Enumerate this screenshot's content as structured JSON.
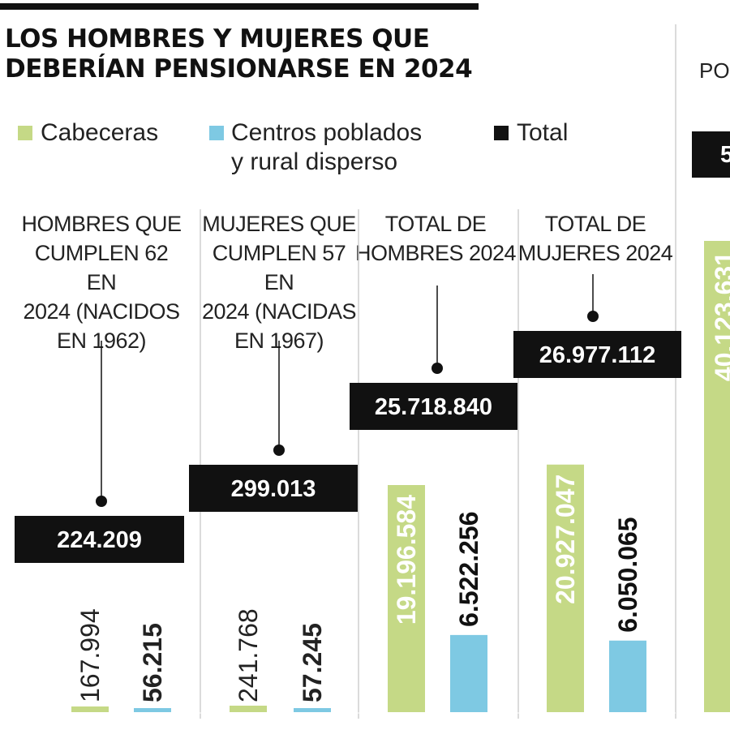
{
  "title_line1": "LOS HOMBRES Y MUJERES QUE",
  "title_line2": "DEBERÍAN PENSIONARSE EN 2024",
  "legend": {
    "cabeceras": "Cabeceras",
    "centros_line1": "Centros poblados",
    "centros_line2": "y rural disperso",
    "total": "Total"
  },
  "colors": {
    "cabeceras": "#c5d986",
    "centros": "#7ec9e3",
    "total": "#111111"
  },
  "peek": {
    "label": "POB",
    "total_partial": "5",
    "value_partial": "40.123.631"
  },
  "chart_data": {
    "type": "bar",
    "title": "LOS HOMBRES Y MUJERES QUE DEBERÍAN PENSIONARSE EN 2024",
    "panels": [
      {
        "title_lines": [
          "HOMBRES QUE",
          "CUMPLEN 62 EN",
          "2024 (NACIDOS",
          "EN 1962)"
        ],
        "total": 224209,
        "total_label": "224.209",
        "cabeceras": 167994,
        "cabeceras_label": "167.994",
        "centros": 56215,
        "centros_label": "56.215"
      },
      {
        "title_lines": [
          "MUJERES QUE",
          "CUMPLEN 57 EN",
          "2024 (NACIDAS",
          "EN 1967)"
        ],
        "total": 299013,
        "total_label": "299.013",
        "cabeceras": 241768,
        "cabeceras_label": "241.768",
        "centros": 57245,
        "centros_label": "57.245"
      },
      {
        "title_lines": [
          "TOTAL DE",
          "HOMBRES 2024"
        ],
        "total": 25718840,
        "total_label": "25.718.840",
        "cabeceras": 19196584,
        "cabeceras_label": "19.196.584",
        "centros": 6522256,
        "centros_label": "6.522.256"
      },
      {
        "title_lines": [
          "TOTAL DE",
          "MUJERES 2024"
        ],
        "total": 26977112,
        "total_label": "26.977.112",
        "cabeceras": 20927047,
        "cabeceras_label": "20.927.047",
        "centros": 6050065,
        "centros_label": "6.050.065"
      }
    ]
  }
}
